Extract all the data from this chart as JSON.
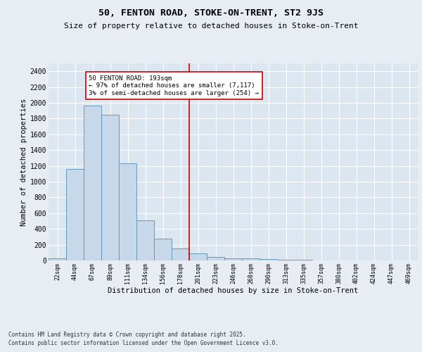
{
  "title": "50, FENTON ROAD, STOKE-ON-TRENT, ST2 9JS",
  "subtitle": "Size of property relative to detached houses in Stoke-on-Trent",
  "xlabel": "Distribution of detached houses by size in Stoke-on-Trent",
  "ylabel": "Number of detached properties",
  "categories": [
    "22sqm",
    "44sqm",
    "67sqm",
    "89sqm",
    "111sqm",
    "134sqm",
    "156sqm",
    "178sqm",
    "201sqm",
    "223sqm",
    "246sqm",
    "268sqm",
    "290sqm",
    "313sqm",
    "335sqm",
    "357sqm",
    "380sqm",
    "402sqm",
    "424sqm",
    "447sqm",
    "469sqm"
  ],
  "values": [
    25,
    1160,
    1960,
    1850,
    1230,
    510,
    275,
    155,
    85,
    45,
    30,
    28,
    15,
    8,
    5,
    4,
    3,
    2,
    2,
    1,
    1
  ],
  "bar_color": "#c8d8eb",
  "bar_edge_color": "#6699bb",
  "vline_color": "#cc0000",
  "annotation_title": "50 FENTON ROAD: 193sqm",
  "annotation_left": "← 97% of detached houses are smaller (7,117)",
  "annotation_right": "3% of semi-detached houses are larger (254) →",
  "annotation_box_edgecolor": "#cc0000",
  "ylim": [
    0,
    2500
  ],
  "yticks": [
    0,
    200,
    400,
    600,
    800,
    1000,
    1200,
    1400,
    1600,
    1800,
    2000,
    2200,
    2400
  ],
  "plot_bg_color": "#dce6f0",
  "fig_bg_color": "#e8edf4",
  "grid_color": "#ffffff",
  "footer1": "Contains HM Land Registry data © Crown copyright and database right 2025.",
  "footer2": "Contains public sector information licensed under the Open Government Licence v3.0."
}
